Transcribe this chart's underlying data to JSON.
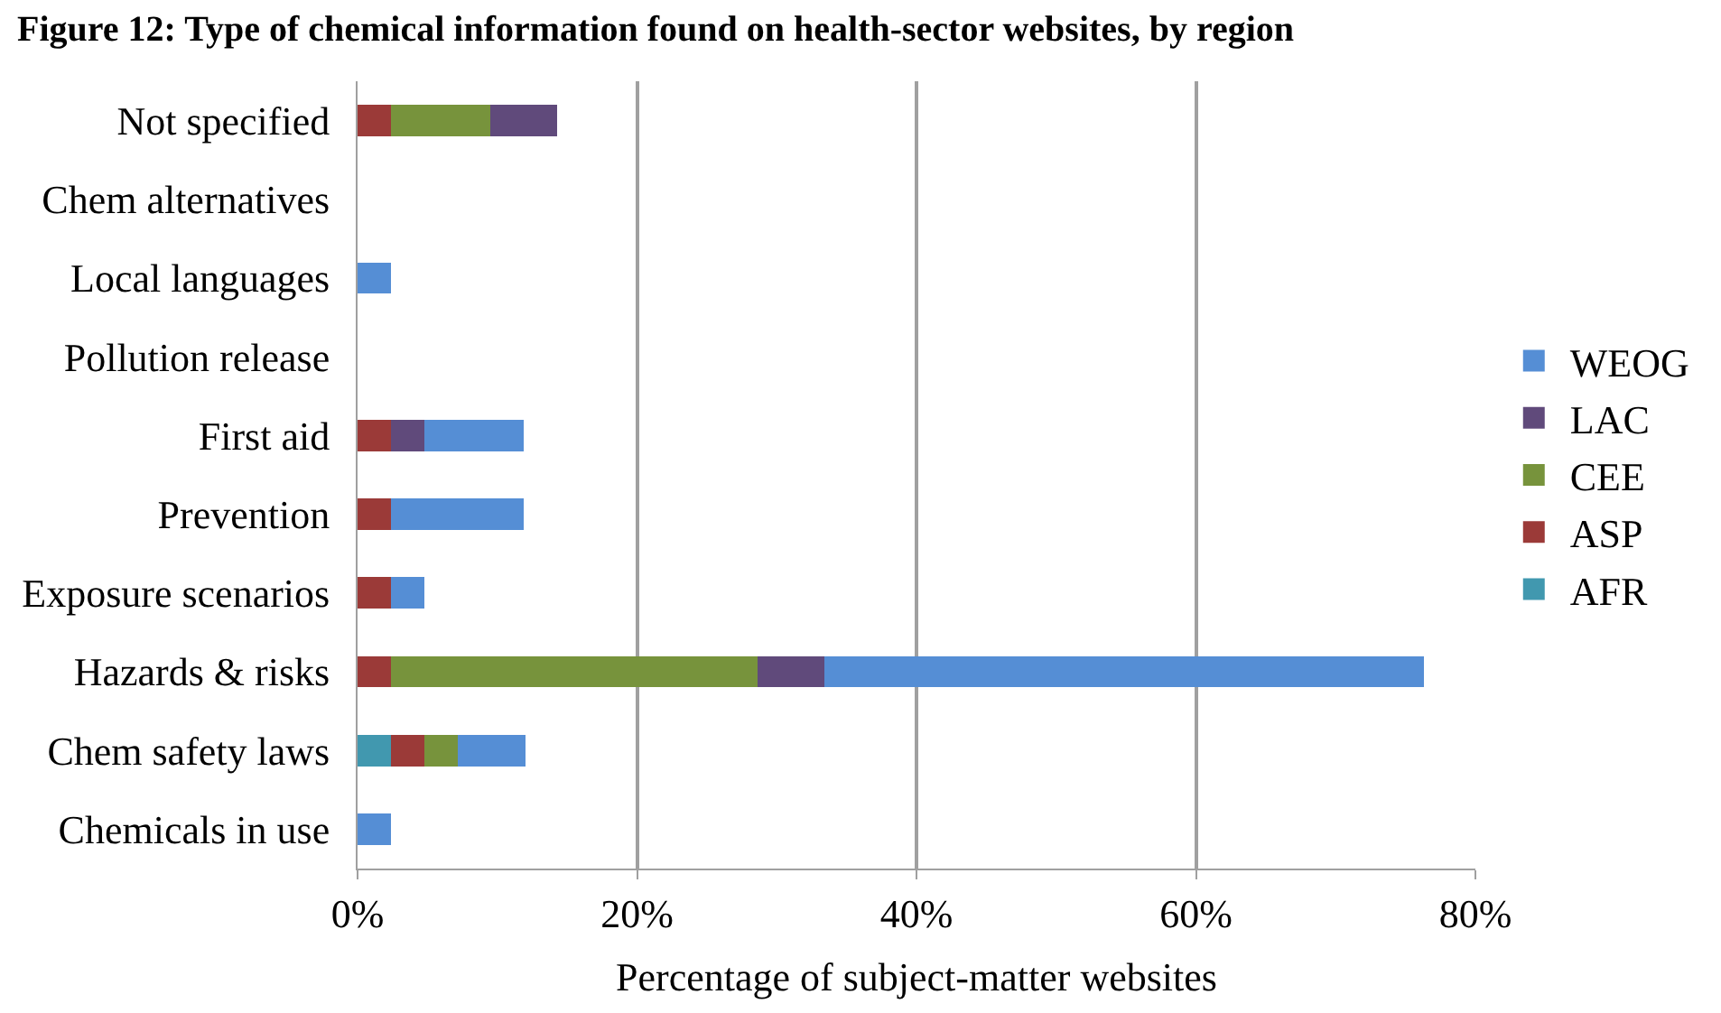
{
  "chart_data": {
    "type": "bar",
    "orientation": "horizontal",
    "stacked": true,
    "title": "Figure 12: Type of chemical information found on health-sector websites, by region",
    "xlabel": "Percentage of subject-matter websites",
    "categories": [
      "Not specified",
      "Chem alternatives",
      "Local languages",
      "Pollution release",
      "First aid",
      "Prevention",
      "Exposure scenarios",
      "Hazards & risks",
      "Chem safety laws",
      "Chemicals in use"
    ],
    "series": [
      {
        "name": "AFR",
        "color": "#4198af",
        "values": [
          0,
          0,
          0,
          0,
          0,
          0,
          0,
          0,
          2.4,
          0
        ]
      },
      {
        "name": "ASP",
        "color": "#9b3a38",
        "values": [
          2.4,
          0,
          0,
          0,
          2.4,
          2.4,
          2.4,
          2.4,
          2.4,
          0
        ]
      },
      {
        "name": "CEE",
        "color": "#77933c",
        "values": [
          7.1,
          0,
          0,
          0,
          0,
          0,
          0,
          26.2,
          2.4,
          0
        ]
      },
      {
        "name": "LAC",
        "color": "#604a7b",
        "values": [
          4.8,
          0,
          0,
          0,
          2.4,
          0,
          0,
          4.8,
          0,
          0
        ]
      },
      {
        "name": "WEOG",
        "color": "#558ed5",
        "values": [
          0,
          0,
          2.4,
          0,
          7.1,
          9.5,
          2.4,
          42.9,
          4.8,
          2.4
        ]
      }
    ],
    "xlim": [
      0,
      80
    ],
    "xticks": [
      {
        "value": 0,
        "label": "0%"
      },
      {
        "value": 20,
        "label": "20%"
      },
      {
        "value": 40,
        "label": "40%"
      },
      {
        "value": 60,
        "label": "60%"
      },
      {
        "value": 80,
        "label": "80%"
      }
    ],
    "grid": "x",
    "legend": "right"
  }
}
